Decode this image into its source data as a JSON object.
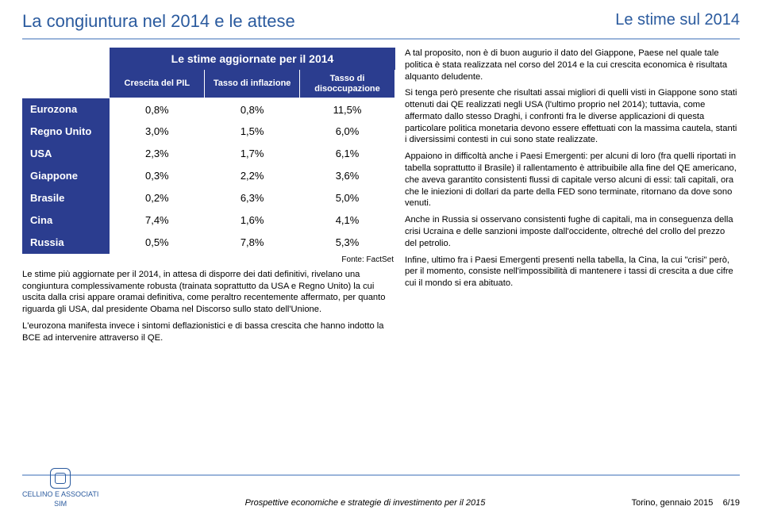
{
  "header": {
    "left": "La congiuntura nel 2014 e le attese",
    "right": "Le stime sul 2014"
  },
  "table": {
    "title": "Le stime aggiornate per il 2014",
    "columns": [
      "Crescita del PIL",
      "Tasso di inflazione",
      "Tasso di disoccupazione"
    ],
    "rows": [
      {
        "label": "Eurozona",
        "c1": "0,8%",
        "c2": "0,8%",
        "c3": "11,5%"
      },
      {
        "label": "Regno Unito",
        "c1": "3,0%",
        "c2": "1,5%",
        "c3": "6,0%"
      },
      {
        "label": "USA",
        "c1": "2,3%",
        "c2": "1,7%",
        "c3": "6,1%"
      },
      {
        "label": "Giappone",
        "c1": "0,3%",
        "c2": "2,2%",
        "c3": "3,6%"
      },
      {
        "label": "Brasile",
        "c1": "0,2%",
        "c2": "6,3%",
        "c3": "5,0%"
      },
      {
        "label": "Cina",
        "c1": "7,4%",
        "c2": "1,6%",
        "c3": "4,1%"
      },
      {
        "label": "Russia",
        "c1": "0,5%",
        "c2": "7,8%",
        "c3": "5,3%"
      }
    ],
    "source": "Fonte: FactSet",
    "colors": {
      "header_bg": "#2b3d8f",
      "header_fg": "#ffffff",
      "cell_fg": "#000000"
    }
  },
  "leftnote": {
    "p1": "Le stime più aggiornate per il 2014, in attesa di disporre dei dati definitivi, rivelano una congiuntura complessivamente robusta (trainata soprattutto da USA e Regno Unito) la cui uscita dalla crisi appare oramai definitiva, come peraltro recentemente affermato, per quanto riguarda gli USA, dal presidente Obama nel Discorso sullo stato dell'Unione.",
    "p2": "L'eurozona manifesta invece i sintomi deflazionistici e di bassa crescita che hanno indotto la BCE ad intervenire attraverso il QE."
  },
  "rightcol": {
    "p1": "A tal proposito, non è di buon augurio il dato del Giappone, Paese nel quale tale politica è stata realizzata nel corso del 2014 e la cui crescita economica è risultata alquanto deludente.",
    "p2": "Si tenga però presente che risultati assai migliori di quelli visti in Giappone sono stati ottenuti dai QE realizzati negli USA (l'ultimo proprio nel 2014); tuttavia, come affermato dallo stesso Draghi, i confronti fra le diverse applicazioni di questa particolare politica monetaria devono essere effettuati con la massima cautela, stanti i diversissimi contesti in cui sono state realizzate.",
    "p3": "Appaiono in difficoltà anche i Paesi Emergenti: per alcuni di loro (fra quelli riportati in tabella soprattutto il Brasile) il rallentamento è attribuibile alla fine del QE americano, che aveva garantito consistenti flussi di capitale verso alcuni di essi: tali capitali, ora che le iniezioni di dollari da parte della FED sono terminate, ritornano da dove sono venuti.",
    "p4": "Anche in Russia si osservano consistenti fughe di capitali, ma in conseguenza della crisi Ucraina e delle sanzioni imposte dall'occidente, oltreché del crollo del prezzo del petrolio.",
    "p5": "Infine, ultimo fra i Paesi Emergenti presenti nella tabella, la Cina, la cui \"crisi\" però, per il momento, consiste nell'impossibilità di mantenere i tassi di crescita a due cifre cui il mondo si era abituato."
  },
  "footer": {
    "logo_line1": "CELLINO E ASSOCIATI",
    "logo_line2": "SIM",
    "mid": "Prospettive economiche e strategie di investimento per il 2015",
    "right": "Torino, gennaio 2015",
    "page": "6/19"
  }
}
